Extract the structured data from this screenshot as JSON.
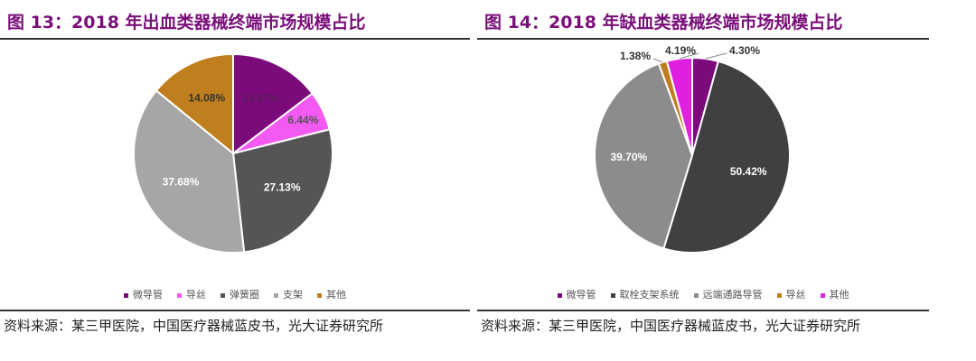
{
  "chart_data": [
    {
      "type": "pie",
      "title": "图 13：2018 年出血类器械终端市场规模占比",
      "categories": [
        "微导管",
        "导丝",
        "弹簧圈",
        "支架",
        "其他"
      ],
      "values": [
        14.67,
        6.44,
        27.13,
        37.68,
        14.08
      ],
      "labels": [
        "14.67%",
        "6.44%",
        "27.13%",
        "37.68%",
        "14.08%"
      ],
      "colors": [
        "#7b0a7b",
        "#f25af2",
        "#555558",
        "#a6a6a6",
        "#c07f1e"
      ],
      "label_colors": [
        "#5a1a5a",
        "#555555",
        "#ffffff",
        "#ffffff",
        "#333333"
      ],
      "legend_placement": "bottom",
      "source": "资料来源：某三甲医院，中国医疗器械蓝皮书，光大证券研究所"
    },
    {
      "type": "pie",
      "title": "图 14：2018 年缺血类器械终端市场规模占比",
      "categories": [
        "微导管",
        "取栓支架系统",
        "远端通路导管",
        "导丝",
        "其他"
      ],
      "values": [
        4.3,
        50.42,
        39.7,
        1.38,
        4.19
      ],
      "labels": [
        "4.30%",
        "50.42%",
        "39.70%",
        "1.38%",
        "4.19%"
      ],
      "colors": [
        "#7b0a7b",
        "#404042",
        "#8c8c8c",
        "#c07f1e",
        "#e020e0"
      ],
      "label_colors": [
        "#333333",
        "#ffffff",
        "#ffffff",
        "#333333",
        "#333333"
      ],
      "legend_placement": "bottom",
      "source": "资料来源：某三甲医院，中国医疗器械蓝皮书，光大证券研究所"
    }
  ]
}
